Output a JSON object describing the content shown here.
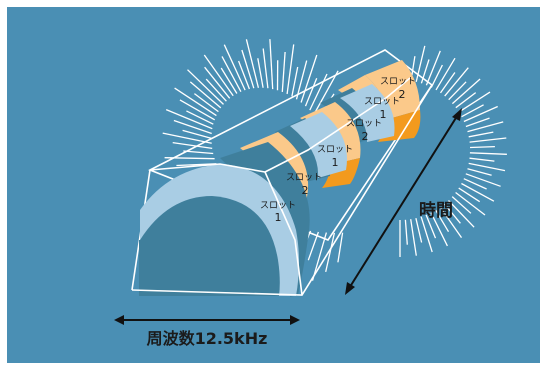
{
  "colors": {
    "background": "#4a8fb4",
    "panel_border": "#ffffff",
    "slot_pale_blue": "#a9cde4",
    "slot_dark_blue": "#3f7f9c",
    "slot_light_orange": "#fbc98a",
    "slot_orange": "#f39a1e",
    "lines": "#ffffff",
    "label_text": "#1b1b1b"
  },
  "labels": {
    "time_axis": "時間",
    "frequency_axis": "周波数12.5kHz",
    "slot_word": "スロット",
    "slot_numbers": [
      "1",
      "2",
      "1",
      "2",
      "1",
      "2"
    ]
  }
}
